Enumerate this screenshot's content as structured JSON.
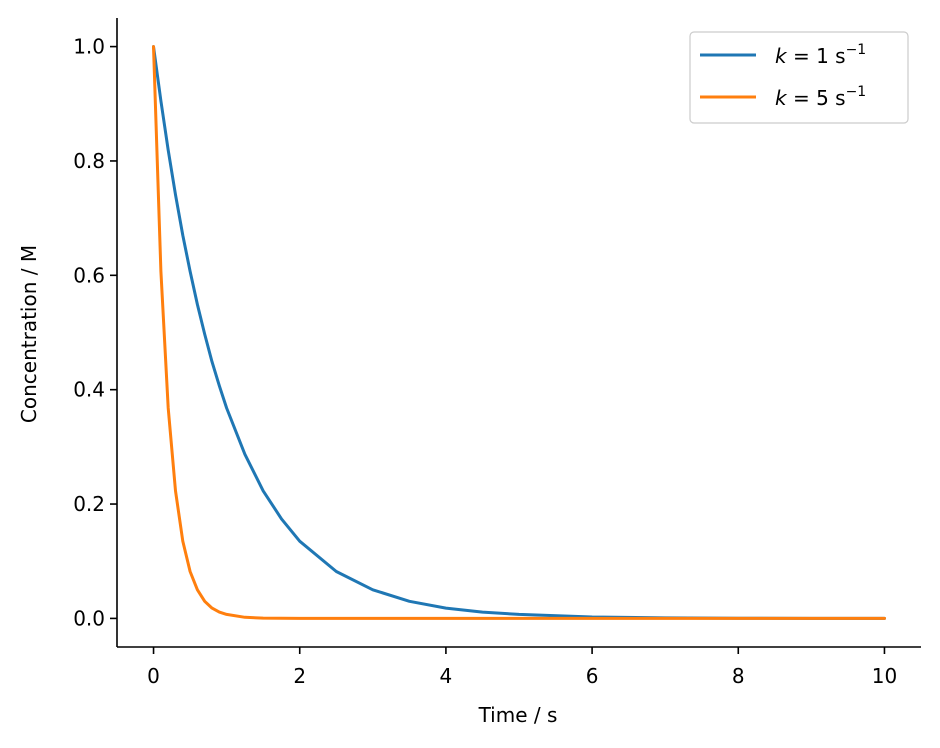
{
  "chart_data": {
    "type": "line",
    "xlabel": "Time / s",
    "ylabel": "Concentration / M",
    "xlim": [
      -0.5,
      10.5
    ],
    "ylim": [
      -0.05,
      1.05
    ],
    "xticks": [
      0,
      2,
      4,
      6,
      8,
      10
    ],
    "xtick_labels": [
      "0",
      "2",
      "4",
      "6",
      "8",
      "10"
    ],
    "yticks": [
      0.0,
      0.2,
      0.4,
      0.6,
      0.8,
      1.0
    ],
    "ytick_labels": [
      "0.0",
      "0.2",
      "0.4",
      "0.6",
      "0.8",
      "1.0"
    ],
    "grid": false,
    "legend_position": "top-right",
    "x": [
      0,
      0.1,
      0.2,
      0.3,
      0.4,
      0.5,
      0.6,
      0.7,
      0.8,
      0.9,
      1.0,
      1.25,
      1.5,
      1.75,
      2.0,
      2.5,
      3.0,
      3.5,
      4.0,
      4.5,
      5.0,
      6.0,
      7.0,
      8.0,
      9.0,
      10.0
    ],
    "series": [
      {
        "name": "k = 1 s⁻¹",
        "name_parts": {
          "var": "k",
          "rest": " = 1 s",
          "sup": "−1"
        },
        "color": "#1f77b4",
        "values": [
          1.0,
          0.905,
          0.819,
          0.741,
          0.67,
          0.607,
          0.549,
          0.497,
          0.449,
          0.407,
          0.368,
          0.287,
          0.223,
          0.174,
          0.135,
          0.082,
          0.05,
          0.03,
          0.018,
          0.011,
          0.007,
          0.0025,
          0.0009,
          0.0003,
          0.0001,
          0.0
        ]
      },
      {
        "name": "k = 5 s⁻¹",
        "name_parts": {
          "var": "k",
          "rest": " = 5 s",
          "sup": "−1"
        },
        "color": "#ff7f0e",
        "values": [
          1.0,
          0.607,
          0.368,
          0.223,
          0.135,
          0.082,
          0.05,
          0.03,
          0.018,
          0.011,
          0.007,
          0.002,
          0.0006,
          0.0002,
          0.0,
          0.0,
          0.0,
          0.0,
          0.0,
          0.0,
          0.0,
          0.0,
          0.0,
          0.0,
          0.0,
          0.0
        ]
      }
    ]
  }
}
